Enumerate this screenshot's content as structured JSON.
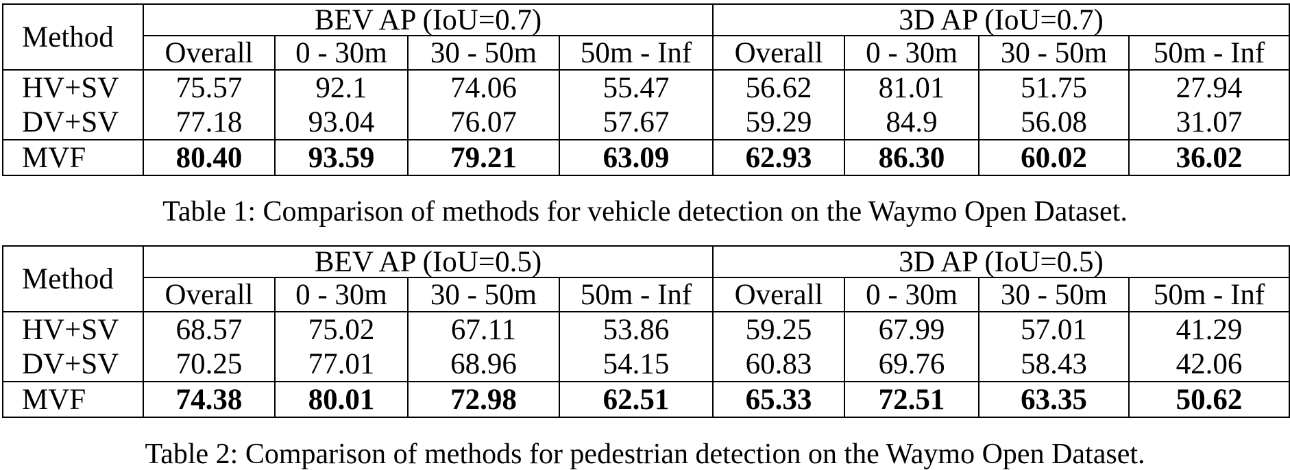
{
  "tables": [
    {
      "method_header": "Method",
      "groups": [
        "BEV AP (IoU=0.7)",
        "3D AP (IoU=0.7)"
      ],
      "subheaders": [
        "Overall",
        "0 - 30m",
        "30 - 50m",
        "50m - Inf",
        "Overall",
        "0 - 30m",
        "30 - 50m",
        "50m - Inf"
      ],
      "rows": [
        {
          "method": "HV+SV",
          "values": [
            "75.57",
            "92.1",
            "74.06",
            "55.47",
            "56.62",
            "81.01",
            "51.75",
            "27.94"
          ]
        },
        {
          "method": "DV+SV",
          "values": [
            "77.18",
            "93.04",
            "76.07",
            "57.67",
            "59.29",
            "84.9",
            "56.08",
            "31.07"
          ]
        },
        {
          "method": "MVF",
          "values": [
            "80.40",
            "93.59",
            "79.21",
            "63.09",
            "62.93",
            "86.30",
            "60.02",
            "36.02"
          ]
        }
      ],
      "caption": "Table 1: Comparison of methods for vehicle detection on the Waymo Open Dataset."
    },
    {
      "method_header": "Method",
      "groups": [
        "BEV AP (IoU=0.5)",
        "3D AP (IoU=0.5)"
      ],
      "subheaders": [
        "Overall",
        "0 - 30m",
        "30 - 50m",
        "50m - Inf",
        "Overall",
        "0 - 30m",
        "30 - 50m",
        "50m - Inf"
      ],
      "rows": [
        {
          "method": "HV+SV",
          "values": [
            "68.57",
            "75.02",
            "67.11",
            "53.86",
            "59.25",
            "67.99",
            "57.01",
            "41.29"
          ]
        },
        {
          "method": "DV+SV",
          "values": [
            "70.25",
            "77.01",
            "68.96",
            "54.15",
            "60.83",
            "69.76",
            "58.43",
            "42.06"
          ]
        },
        {
          "method": "MVF",
          "values": [
            "74.38",
            "80.01",
            "72.98",
            "62.51",
            "65.33",
            "72.51",
            "63.35",
            "50.62"
          ]
        }
      ],
      "caption": "Table 2: Comparison of methods for pedestrian detection on the Waymo Open Dataset."
    }
  ]
}
